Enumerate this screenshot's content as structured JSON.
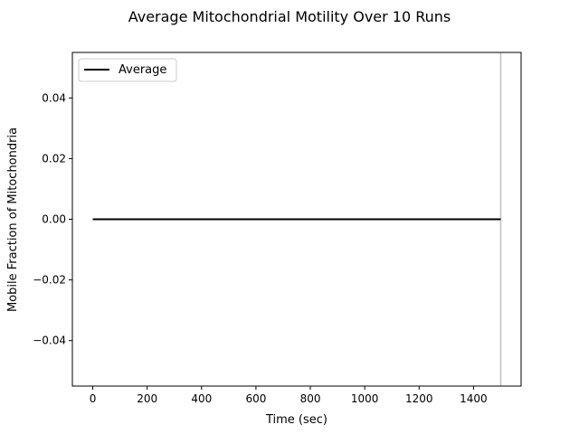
{
  "chart_data": {
    "type": "line",
    "title": "Average Mitochondrial Motility Over 10 Runs",
    "xlabel": "Time (sec)",
    "ylabel": "Mobile Fraction of Mitochondria",
    "xlim": [
      -75,
      1575
    ],
    "ylim": [
      -0.055,
      0.055
    ],
    "xticks": [
      0,
      200,
      400,
      600,
      800,
      1000,
      1200,
      1400
    ],
    "yticks": [
      -0.04,
      -0.02,
      0.0,
      0.02,
      0.04
    ],
    "xtick_labels": [
      "0",
      "200",
      "400",
      "600",
      "800",
      "1000",
      "1200",
      "1400"
    ],
    "ytick_labels": [
      "−0.04",
      "−0.02",
      "0.00",
      "0.02",
      "0.04"
    ],
    "series": [
      {
        "name": "Average",
        "color": "#000000",
        "x": [
          0,
          1500
        ],
        "y": [
          0,
          0
        ]
      }
    ],
    "vline": {
      "x": 1500,
      "color": "#bfbfbf"
    },
    "legend": {
      "position": "top-left",
      "entries": [
        "Average"
      ]
    },
    "grid": false
  }
}
